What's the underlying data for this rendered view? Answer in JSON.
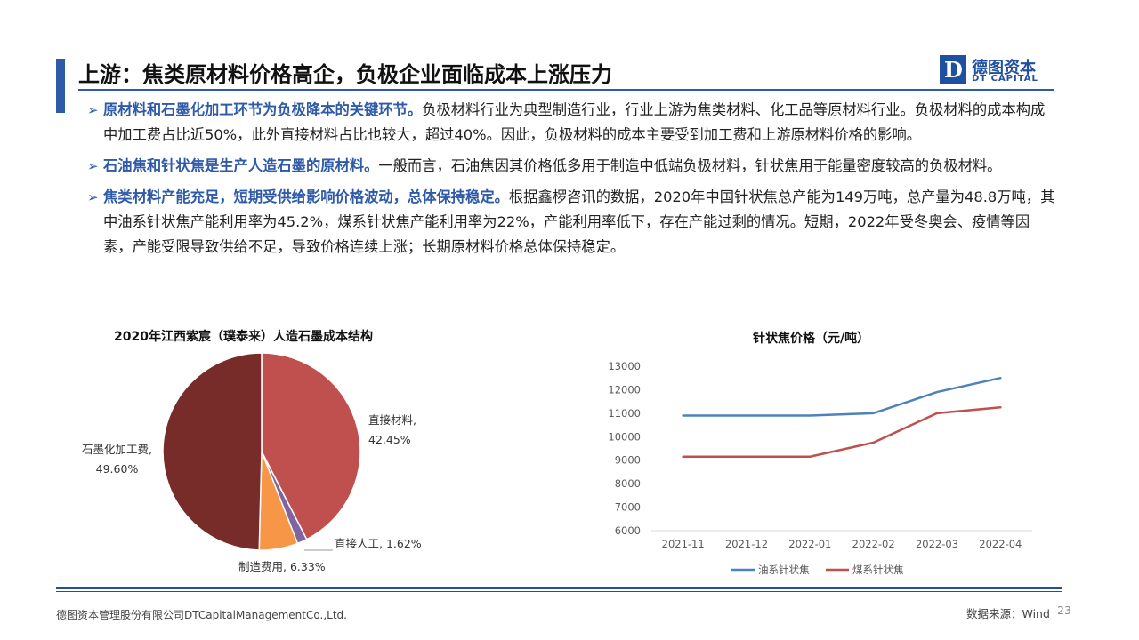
{
  "header": {
    "title": "上游：焦类原材料价格高企，负极企业面临成本上涨压力",
    "logo_cn": "德图资本",
    "logo_en": "DT CAPITAL",
    "logo_letter": "D"
  },
  "bullets": [
    {
      "lead": "原材料和石墨化加工环节为负极降本的关键环节。",
      "body": "负极材料行业为典型制造行业，行业上游为焦类材料、化工品等原材料行业。负极材料的成本构成中加工费占比近50%，此外直接材料占比也较大，超过40%。因此，负极材料的成本主要受到加工费和上游原材料价格的影响。"
    },
    {
      "lead": "石油焦和针状焦是生产人造石墨的原材料。",
      "body": "一般而言，石油焦因其价格低多用于制造中低端负极材料，针状焦用于能量密度较高的负极材料。"
    },
    {
      "lead": "焦类材料产能充足，短期受供给影响价格波动，总体保持稳定。",
      "body": "根据鑫椤咨讯的数据，2020年中国针状焦总产能为149万吨，总产量为48.8万吨，其中油系针状焦产能利用率为45.2%，煤系针状焦产能利用率为22%，产能利用率低下，存在产能过剩的情况。短期，2022年受冬奥会、疫情等因素，产能受限导致供给不足，导致价格连续上涨；长期原材料价格总体保持稳定。"
    }
  ],
  "footer": {
    "company": "德图资本管理股份有限公司DTCapitalManagementCo.,Ltd.",
    "source": "数据来源：Wind",
    "page": "23"
  },
  "chart_data": [
    {
      "type": "pie",
      "title": "2020年江西紫宸（璞泰来）人造石墨成本结构",
      "slices": [
        {
          "label": "直接材料",
          "value": 42.45,
          "value_text": "42.45%",
          "color": "#c0504d"
        },
        {
          "label": "直接人工",
          "value": 1.62,
          "value_text": "1.62%",
          "color": "#8064a2"
        },
        {
          "label": "制造费用",
          "value": 6.33,
          "value_text": "6.33%",
          "color": "#f79646"
        },
        {
          "label": "石墨化加工费",
          "value": 49.6,
          "value_text": "49.60%",
          "color": "#772c2a"
        }
      ]
    },
    {
      "type": "line",
      "title": "针状焦价格（元/吨）",
      "categories": [
        "2021-11",
        "2021-12",
        "2022-01",
        "2022-02",
        "2022-03",
        "2022-04"
      ],
      "ylim": [
        6000,
        13000
      ],
      "yticks": [
        6000,
        7000,
        8000,
        9000,
        10000,
        11000,
        12000,
        13000
      ],
      "grid": false,
      "legend": "bottom",
      "series": [
        {
          "name": "油系针状焦",
          "color": "#4f81bd",
          "values": [
            10900,
            10900,
            10900,
            11000,
            11900,
            12500
          ]
        },
        {
          "name": "煤系针状焦",
          "color": "#c0504d",
          "values": [
            9150,
            9150,
            9150,
            9750,
            11000,
            11250
          ]
        }
      ]
    }
  ]
}
